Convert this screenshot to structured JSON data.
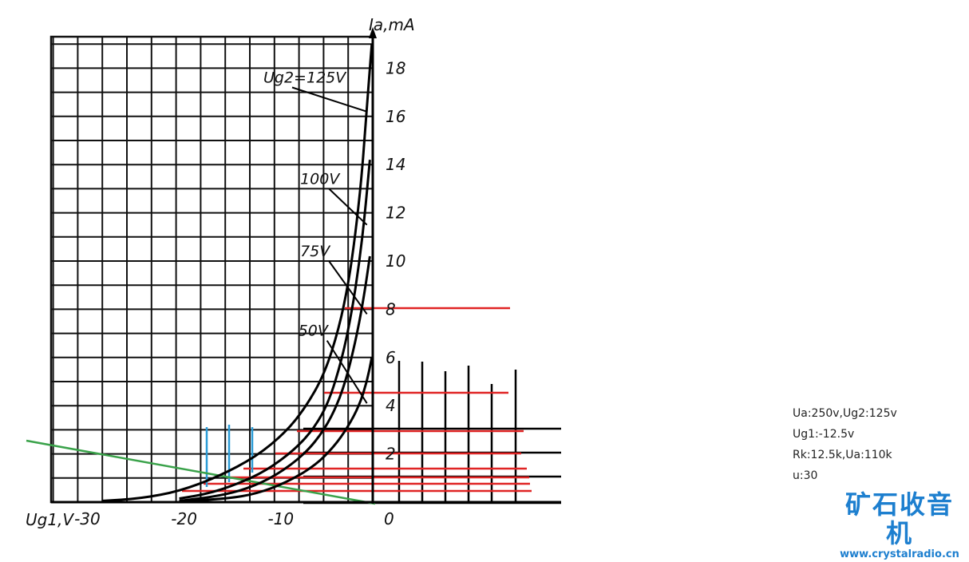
{
  "chart_data": {
    "type": "line",
    "title": "",
    "xlabel": "Ug1,V",
    "ylabel": "Ia,mA",
    "xlim": [
      -33,
      0
    ],
    "ylim": [
      0,
      19
    ],
    "x_ticks": [
      {
        "value": -30,
        "label": "-30"
      },
      {
        "value": -20,
        "label": "-20"
      },
      {
        "value": -10,
        "label": "-10"
      },
      {
        "value": 0,
        "label": "0"
      }
    ],
    "y_ticks": [
      {
        "value": 2,
        "label": "2"
      },
      {
        "value": 4,
        "label": "4"
      },
      {
        "value": 6,
        "label": "6"
      },
      {
        "value": 8,
        "label": "8"
      },
      {
        "value": 10,
        "label": "10"
      },
      {
        "value": 12,
        "label": "12"
      },
      {
        "value": 14,
        "label": "14"
      },
      {
        "value": 16,
        "label": "16"
      },
      {
        "value": 18,
        "label": "18"
      }
    ],
    "grid": true,
    "series": [
      {
        "name": "Ug2=125V",
        "label_pos": [
          -11.3,
          17.4
        ],
        "leader_end": [
          -0.6,
          16.2
        ],
        "points": [
          [
            -28,
            0.05
          ],
          [
            -24,
            0.15
          ],
          [
            -20,
            0.45
          ],
          [
            -16,
            1.05
          ],
          [
            -12,
            1.9
          ],
          [
            -9,
            2.9
          ],
          [
            -7,
            3.9
          ],
          [
            -5,
            5.3
          ],
          [
            -3.5,
            7.2
          ],
          [
            -2.5,
            9.1
          ],
          [
            -1.8,
            11.1
          ],
          [
            -1.2,
            13.3
          ],
          [
            -0.8,
            15.3
          ],
          [
            -0.4,
            17.5
          ],
          [
            -0.1,
            19
          ]
        ]
      },
      {
        "name": "100V",
        "label_pos": [
          -7.5,
          13.2
        ],
        "leader_end": [
          -0.6,
          11.5
        ],
        "points": [
          [
            -20,
            0.15
          ],
          [
            -17,
            0.35
          ],
          [
            -14,
            0.75
          ],
          [
            -11,
            1.3
          ],
          [
            -8,
            2.2
          ],
          [
            -6,
            3.1
          ],
          [
            -4.5,
            4.2
          ],
          [
            -3.2,
            5.9
          ],
          [
            -2.2,
            7.8
          ],
          [
            -1.4,
            9.9
          ],
          [
            -0.8,
            12
          ],
          [
            -0.3,
            14.2
          ]
        ]
      },
      {
        "name": "75V",
        "label_pos": [
          -7.5,
          10.2
        ],
        "leader_end": [
          -0.6,
          7.8
        ],
        "points": [
          [
            -20,
            0.05
          ],
          [
            -16,
            0.25
          ],
          [
            -13,
            0.55
          ],
          [
            -10,
            1.1
          ],
          [
            -7,
            2
          ],
          [
            -5,
            3
          ],
          [
            -3.6,
            4.1
          ],
          [
            -2.6,
            5.3
          ],
          [
            -1.6,
            7
          ],
          [
            -0.8,
            8.8
          ],
          [
            -0.3,
            10.2
          ]
        ]
      },
      {
        "name": "50V",
        "label_pos": [
          -7.7,
          6.9
        ],
        "leader_end": [
          -0.6,
          4.1
        ],
        "points": [
          [
            -20,
            0.02
          ],
          [
            -15,
            0.15
          ],
          [
            -12,
            0.35
          ],
          [
            -9,
            0.8
          ],
          [
            -6,
            1.5
          ],
          [
            -4,
            2.3
          ],
          [
            -2.6,
            3.1
          ],
          [
            -1.4,
            4
          ],
          [
            -0.6,
            5
          ],
          [
            -0.1,
            6
          ]
        ]
      }
    ],
    "annotations": {
      "loadline_color": "#3aa24a",
      "red_line_color": "#e02424",
      "blue_line_color": "#2a9bd6",
      "black_line_color": "#000000"
    }
  },
  "notes": [
    "Ua:250v,Ug2:125v",
    "Ug1:-12.5v",
    "Rk:12.5k,Ua:110k",
    "u:30"
  ],
  "logo": {
    "text": "矿石收音机",
    "url": "www.crystalradio.cn",
    "color": "#1d7fcf"
  }
}
